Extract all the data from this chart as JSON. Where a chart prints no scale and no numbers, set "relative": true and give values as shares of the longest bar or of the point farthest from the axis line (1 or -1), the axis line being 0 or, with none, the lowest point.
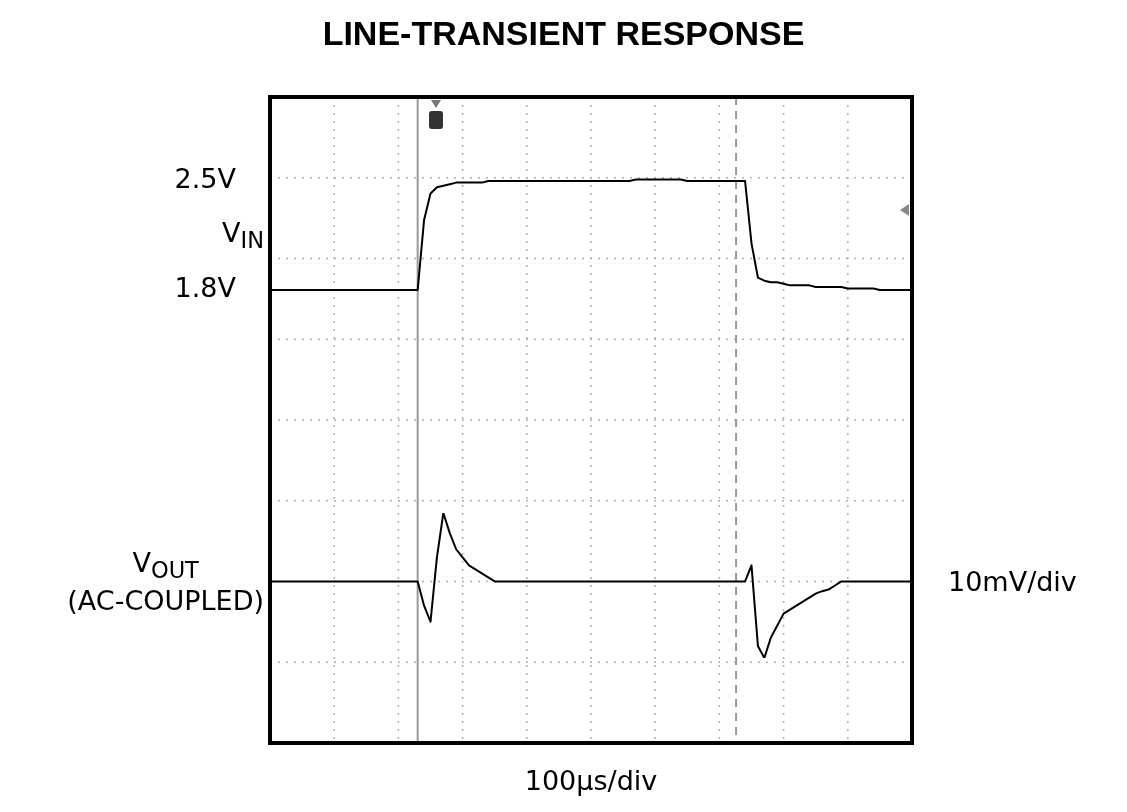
{
  "chart_data": [
    {
      "type": "line",
      "title": "LINE-TRANSIENT RESPONSE",
      "xlabel": "100µs/div",
      "categories": [
        null,
        null,
        null,
        null,
        null,
        null,
        null,
        null,
        null,
        null,
        null,
        null,
        null,
        null,
        null,
        null,
        null,
        null,
        null,
        null,
        null,
        null,
        null,
        null,
        null,
        null,
        null,
        null,
        null,
        null,
        null,
        null,
        null,
        null,
        null,
        null,
        null,
        null,
        null,
        null,
        null,
        null,
        null,
        null,
        null,
        null,
        null,
        null,
        null,
        null,
        null,
        null,
        null,
        null,
        null,
        null,
        null,
        null,
        null,
        null,
        null,
        null,
        null,
        null,
        null,
        null,
        null,
        null,
        null,
        null,
        null,
        null,
        null,
        null,
        null,
        null,
        null,
        null,
        null,
        null,
        null,
        null,
        null,
        null,
        null,
        null,
        null,
        null,
        null,
        null,
        null,
        null,
        null,
        null,
        null,
        null,
        null,
        null,
        null,
        null,
        null
      ],
      "ylim": [
        -1.11,
        3.04
      ],
      "yticks": [
        {
          "value": 1.8,
          "label": "1.8V"
        },
        {
          "value": 2.5,
          "label": "2.5V"
        }
      ],
      "tick_labels": "y",
      "grid": true,
      "legend": false,
      "marker": "none",
      "series": [
        {
          "name": "V$_{IN}$",
          "color": "#000000",
          "values": [
            1.8,
            1.8,
            1.8,
            1.8,
            1.8,
            1.8,
            1.8,
            1.8,
            1.8,
            1.8,
            1.8,
            1.8,
            1.8,
            1.8,
            1.8,
            1.8,
            1.8,
            1.8,
            1.8,
            1.8,
            1.8,
            1.8,
            1.8,
            1.8,
            2.25,
            2.42,
            2.46,
            2.47,
            2.48,
            2.49,
            2.49,
            2.49,
            2.49,
            2.49,
            2.5,
            2.5,
            2.5,
            2.5,
            2.5,
            2.5,
            2.5,
            2.5,
            2.5,
            2.5,
            2.5,
            2.5,
            2.5,
            2.5,
            2.5,
            2.5,
            2.5,
            2.5,
            2.5,
            2.5,
            2.5,
            2.5,
            2.5,
            2.51,
            2.51,
            2.51,
            2.51,
            2.51,
            2.51,
            2.51,
            2.51,
            2.5,
            2.5,
            2.5,
            2.5,
            2.5,
            2.5,
            2.5,
            2.5,
            2.5,
            2.5,
            2.1,
            1.88,
            1.86,
            1.85,
            1.85,
            1.84,
            1.83,
            1.83,
            1.83,
            1.83,
            1.82,
            1.82,
            1.82,
            1.82,
            1.82,
            1.81,
            1.81,
            1.81,
            1.81,
            1.81,
            1.8,
            1.8,
            1.8,
            1.8,
            1.8,
            1.8
          ]
        }
      ]
    },
    {
      "type": "line",
      "ylabel": "10mV/div",
      "relative": true,
      "categories": [
        null,
        null,
        null,
        null,
        null,
        null,
        null,
        null,
        null,
        null,
        null,
        null,
        null,
        null,
        null,
        null,
        null,
        null,
        null,
        null,
        null,
        null,
        null,
        null,
        null,
        null,
        null,
        null,
        null,
        null,
        null,
        null,
        null,
        null,
        null,
        null,
        null,
        null,
        null,
        null,
        null,
        null,
        null,
        null,
        null,
        null,
        null,
        null,
        null,
        null,
        null,
        null,
        null,
        null,
        null,
        null,
        null,
        null,
        null,
        null,
        null,
        null,
        null,
        null,
        null,
        null,
        null,
        null,
        null,
        null,
        null,
        null,
        null,
        null,
        null,
        null,
        null,
        null,
        null,
        null,
        null,
        null,
        null,
        null,
        null,
        null,
        null,
        null,
        null,
        null,
        null,
        null,
        null,
        null,
        null,
        null,
        null,
        null,
        null,
        null,
        null
      ],
      "legend": false,
      "marker": "none",
      "series": [
        {
          "name": "V$_{OUT}$\n(AC-COUPLED)",
          "color": "#000000",
          "values": [
            0.528,
            0.528,
            0.528,
            0.528,
            0.528,
            0.528,
            0.528,
            0.528,
            0.528,
            0.528,
            0.528,
            0.528,
            0.528,
            0.528,
            0.528,
            0.528,
            0.528,
            0.528,
            0.528,
            0.528,
            0.528,
            0.528,
            0.528,
            0.528,
            0.361,
            0.25,
            0.694,
            1,
            0.861,
            0.75,
            0.694,
            0.639,
            0.611,
            0.583,
            0.556,
            0.528,
            0.528,
            0.528,
            0.528,
            0.528,
            0.528,
            0.528,
            0.528,
            0.528,
            0.528,
            0.528,
            0.528,
            0.528,
            0.528,
            0.528,
            0.528,
            0.528,
            0.528,
            0.528,
            0.528,
            0.528,
            0.528,
            0.528,
            0.528,
            0.528,
            0.528,
            0.528,
            0.528,
            0.528,
            0.528,
            0.528,
            0.528,
            0.528,
            0.528,
            0.528,
            0.528,
            0.528,
            0.528,
            0.528,
            0.528,
            0.639,
            0.083,
            0,
            0.139,
            0.222,
            0.306,
            0.333,
            0.361,
            0.389,
            0.417,
            0.444,
            0.461,
            0.472,
            0.5,
            0.528,
            0.528,
            0.528,
            0.528,
            0.528,
            0.528,
            0.528,
            0.528,
            0.528,
            0.528,
            0.528,
            0.528
          ]
        }
      ]
    }
  ]
}
